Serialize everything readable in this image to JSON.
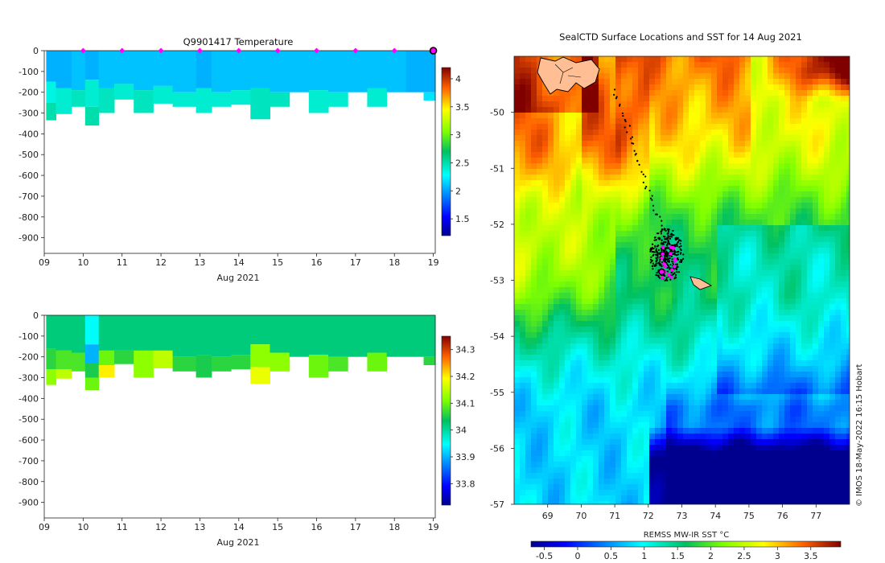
{
  "chart_data": [
    {
      "type": "heatmap",
      "title": "Q9901417  Temperature",
      "xlabel": "Aug 2021",
      "ylabel": "",
      "x_ticks": [
        "09",
        "10",
        "11",
        "12",
        "13",
        "14",
        "15",
        "16",
        "17",
        "18",
        "19"
      ],
      "y_ticks": [
        "0",
        "-100",
        "-200",
        "-300",
        "-400",
        "-500",
        "-600",
        "-700",
        "-800",
        "-900"
      ],
      "xlim": [
        9,
        19.05
      ],
      "ylim": [
        -975,
        0
      ],
      "colorbar": {
        "min": 1.2,
        "max": 4.2,
        "ticks": [
          "1.5",
          "2",
          "2.5",
          "3",
          "3.5",
          "4"
        ]
      },
      "profiles": [
        {
          "day": 9.05,
          "max_depth": -335,
          "layers": [
            [
              0,
              -150,
              2.05
            ],
            [
              -150,
              -250,
              2.35
            ],
            [
              -250,
              -335,
              2.5
            ]
          ]
        },
        {
          "day": 9.3,
          "max_depth": -305,
          "layers": [
            [
              0,
              -180,
              2.05
            ],
            [
              -180,
              -305,
              2.4
            ]
          ]
        },
        {
          "day": 9.7,
          "max_depth": -270,
          "layers": [
            [
              0,
              -190,
              2.1
            ],
            [
              -190,
              -270,
              2.45
            ]
          ]
        },
        {
          "day": 10.05,
          "max_depth": -360,
          "layers": [
            [
              0,
              -140,
              2.05
            ],
            [
              -140,
              -270,
              2.4
            ],
            [
              -270,
              -360,
              2.5
            ]
          ]
        },
        {
          "day": 10.4,
          "max_depth": -300,
          "layers": [
            [
              0,
              -180,
              2.1
            ],
            [
              -180,
              -300,
              2.45
            ]
          ]
        },
        {
          "day": 10.8,
          "max_depth": -235,
          "layers": [
            [
              0,
              -160,
              2.1
            ],
            [
              -160,
              -235,
              2.4
            ]
          ]
        },
        {
          "day": 11.3,
          "max_depth": -300,
          "layers": [
            [
              0,
              -190,
              2.1
            ],
            [
              -190,
              -300,
              2.45
            ]
          ]
        },
        {
          "day": 11.8,
          "max_depth": -255,
          "layers": [
            [
              0,
              -170,
              2.1
            ],
            [
              -170,
              -255,
              2.4
            ]
          ]
        },
        {
          "day": 12.3,
          "max_depth": -270,
          "layers": [
            [
              0,
              -200,
              2.1
            ],
            [
              -200,
              -270,
              2.4
            ]
          ]
        },
        {
          "day": 12.9,
          "max_depth": -300,
          "layers": [
            [
              0,
              -180,
              2.05
            ],
            [
              -180,
              -300,
              2.4
            ]
          ]
        },
        {
          "day": 13.3,
          "max_depth": -270,
          "layers": [
            [
              0,
              -200,
              2.1
            ],
            [
              -200,
              -270,
              2.4
            ]
          ]
        },
        {
          "day": 13.8,
          "max_depth": -260,
          "layers": [
            [
              0,
              -190,
              2.1
            ],
            [
              -190,
              -260,
              2.4
            ]
          ]
        },
        {
          "day": 14.3,
          "max_depth": -330,
          "layers": [
            [
              0,
              -180,
              2.1
            ],
            [
              -180,
              -330,
              2.45
            ]
          ]
        },
        {
          "day": 14.8,
          "max_depth": -270,
          "layers": [
            [
              0,
              -200,
              2.1
            ],
            [
              -200,
              -270,
              2.45
            ]
          ]
        },
        {
          "day": 15.3,
          "max_depth": -200,
          "layers": [
            [
              0,
              -200,
              2.1
            ]
          ]
        },
        {
          "day": 15.8,
          "max_depth": -300,
          "layers": [
            [
              0,
              -190,
              2.1
            ],
            [
              -190,
              -300,
              2.4
            ]
          ]
        },
        {
          "day": 16.3,
          "max_depth": -270,
          "layers": [
            [
              0,
              -200,
              2.1
            ],
            [
              -200,
              -270,
              2.4
            ]
          ]
        },
        {
          "day": 16.8,
          "max_depth": -200,
          "layers": [
            [
              0,
              -200,
              2.1
            ]
          ]
        },
        {
          "day": 17.3,
          "max_depth": -270,
          "layers": [
            [
              0,
              -180,
              2.1
            ],
            [
              -180,
              -270,
              2.4
            ]
          ]
        },
        {
          "day": 17.8,
          "max_depth": -200,
          "layers": [
            [
              0,
              -200,
              2.1
            ]
          ]
        },
        {
          "day": 18.3,
          "max_depth": -200,
          "layers": [
            [
              0,
              -200,
              2.05
            ]
          ]
        },
        {
          "day": 18.75,
          "max_depth": -240,
          "layers": [
            [
              0,
              -200,
              2.05
            ],
            [
              -200,
              -240,
              2.2
            ]
          ]
        }
      ],
      "markers": [
        10,
        11,
        12,
        13,
        14,
        15,
        16,
        17,
        18,
        19
      ],
      "marker_color": "#ff00ff"
    },
    {
      "type": "heatmap",
      "title": "",
      "xlabel": "Aug 2021",
      "ylabel": "",
      "x_ticks": [
        "09",
        "10",
        "11",
        "12",
        "13",
        "14",
        "15",
        "16",
        "17",
        "18",
        "19"
      ],
      "y_ticks": [
        "0",
        "-100",
        "-200",
        "-300",
        "-400",
        "-500",
        "-600",
        "-700",
        "-800",
        "-900"
      ],
      "xlim": [
        9,
        19.05
      ],
      "ylim": [
        -975,
        0
      ],
      "colorbar": {
        "min": 33.72,
        "max": 34.35,
        "ticks": [
          "33.8",
          "33.9",
          "34",
          "34.1",
          "34.2",
          "34.3"
        ]
      },
      "profiles": [
        {
          "day": 9.05,
          "max_depth": -335,
          "layers": [
            [
              0,
              -160,
              34.02
            ],
            [
              -160,
              -260,
              34.06
            ],
            [
              -260,
              -335,
              34.12
            ]
          ]
        },
        {
          "day": 9.3,
          "max_depth": -305,
          "layers": [
            [
              0,
              -170,
              34.02
            ],
            [
              -170,
              -260,
              34.08
            ],
            [
              -260,
              -305,
              34.15
            ]
          ]
        },
        {
          "day": 9.7,
          "max_depth": -270,
          "layers": [
            [
              0,
              -180,
              34.02
            ],
            [
              -180,
              -270,
              34.08
            ]
          ]
        },
        {
          "day": 10.05,
          "max_depth": -360,
          "layers": [
            [
              0,
              -140,
              33.95
            ],
            [
              -140,
              -230,
              33.9
            ],
            [
              -230,
              -300,
              34.05
            ],
            [
              -300,
              -360,
              34.1
            ]
          ]
        },
        {
          "day": 10.4,
          "max_depth": -300,
          "layers": [
            [
              0,
              -170,
              34.02
            ],
            [
              -170,
              -240,
              34.1
            ],
            [
              -240,
              -300,
              34.2
            ]
          ]
        },
        {
          "day": 10.8,
          "max_depth": -235,
          "layers": [
            [
              0,
              -170,
              34.02
            ],
            [
              -170,
              -235,
              34.06
            ]
          ]
        },
        {
          "day": 11.3,
          "max_depth": -300,
          "layers": [
            [
              0,
              -170,
              34.02
            ],
            [
              -170,
              -300,
              34.12
            ]
          ]
        },
        {
          "day": 11.8,
          "max_depth": -255,
          "layers": [
            [
              0,
              -170,
              34.02
            ],
            [
              -170,
              -255,
              34.15
            ]
          ]
        },
        {
          "day": 12.3,
          "max_depth": -270,
          "layers": [
            [
              0,
              -200,
              34.02
            ],
            [
              -200,
              -270,
              34.06
            ]
          ]
        },
        {
          "day": 12.9,
          "max_depth": -300,
          "layers": [
            [
              0,
              -190,
              34.02
            ],
            [
              -190,
              -300,
              34.05
            ]
          ]
        },
        {
          "day": 13.3,
          "max_depth": -270,
          "layers": [
            [
              0,
              -200,
              34.02
            ],
            [
              -200,
              -270,
              34.06
            ]
          ]
        },
        {
          "day": 13.8,
          "max_depth": -260,
          "layers": [
            [
              0,
              -190,
              34.02
            ],
            [
              -190,
              -260,
              34.06
            ]
          ]
        },
        {
          "day": 14.3,
          "max_depth": -330,
          "layers": [
            [
              0,
              -140,
              34.02
            ],
            [
              -140,
              -250,
              34.12
            ],
            [
              -250,
              -330,
              34.18
            ]
          ]
        },
        {
          "day": 14.8,
          "max_depth": -270,
          "layers": [
            [
              0,
              -180,
              34.02
            ],
            [
              -180,
              -270,
              34.12
            ]
          ]
        },
        {
          "day": 15.3,
          "max_depth": -200,
          "layers": [
            [
              0,
              -200,
              34.02
            ]
          ]
        },
        {
          "day": 15.8,
          "max_depth": -300,
          "layers": [
            [
              0,
              -190,
              34.02
            ],
            [
              -190,
              -300,
              34.1
            ]
          ]
        },
        {
          "day": 16.3,
          "max_depth": -270,
          "layers": [
            [
              0,
              -200,
              34.02
            ],
            [
              -200,
              -270,
              34.08
            ]
          ]
        },
        {
          "day": 16.8,
          "max_depth": -200,
          "layers": [
            [
              0,
              -200,
              34.02
            ]
          ]
        },
        {
          "day": 17.3,
          "max_depth": -270,
          "layers": [
            [
              0,
              -180,
              34.02
            ],
            [
              -180,
              -270,
              34.1
            ]
          ]
        },
        {
          "day": 17.8,
          "max_depth": -200,
          "layers": [
            [
              0,
              -200,
              34.02
            ]
          ]
        },
        {
          "day": 18.3,
          "max_depth": -200,
          "layers": [
            [
              0,
              -200,
              34.02
            ]
          ]
        },
        {
          "day": 18.75,
          "max_depth": -240,
          "layers": [
            [
              0,
              -200,
              34.02
            ],
            [
              -200,
              -240,
              34.06
            ]
          ]
        }
      ]
    },
    {
      "type": "heatmap",
      "title": "SealCTD Surface Locations and SST for 14 Aug 2021",
      "xlabel": "",
      "ylabel": "",
      "x_ticks": [
        "69",
        "70",
        "71",
        "72",
        "73",
        "74",
        "75",
        "76",
        "77"
      ],
      "y_ticks": [
        "-50",
        "-51",
        "-52",
        "-53",
        "-54",
        "-55",
        "-56",
        "-57"
      ],
      "xlim": [
        68.0,
        78.0
      ],
      "ylim": [
        -57.0,
        -49.0
      ],
      "colorbar": {
        "label": "REMSS MW-IR SST °C",
        "min": -0.7,
        "max": 3.95,
        "ticks": [
          "-0.5",
          "0",
          "0.5",
          "1",
          "1.5",
          "2",
          "2.5",
          "3",
          "3.5"
        ]
      },
      "track_color": "#000000",
      "surface_color": "#ff00ff",
      "credit": "© IMOS 18-May-2022 16:15 Hobart"
    }
  ]
}
